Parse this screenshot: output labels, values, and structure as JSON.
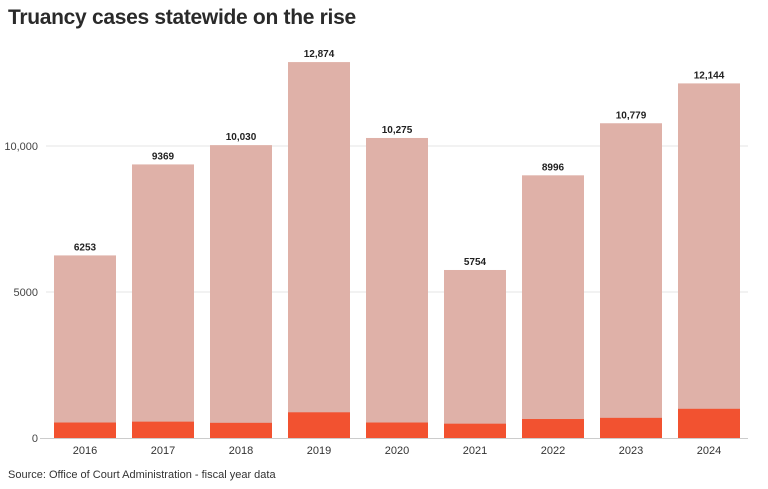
{
  "title": "Truancy cases statewide on the rise",
  "source": "Source: Office of Court Administration - fiscal year data",
  "colors": {
    "total": "#dfb1a8",
    "highlight": "#f25230",
    "grid": "#e6e6e6"
  },
  "chart_data": {
    "type": "bar",
    "categories": [
      "2016",
      "2017",
      "2018",
      "2019",
      "2020",
      "2021",
      "2022",
      "2023",
      "2024"
    ],
    "series": [
      {
        "values": [
          6253,
          9369,
          10030,
          12874,
          10275,
          5754,
          8996,
          10779,
          12144
        ]
      },
      {
        "values": [
          530,
          560,
          520,
          880,
          530,
          490,
          650,
          690,
          1000
        ]
      }
    ],
    "data_labels": [
      "6253",
      "9369",
      "10,030",
      "12,874",
      "10,275",
      "5754",
      "8996",
      "10,779",
      "12,144"
    ],
    "yticks": [
      0,
      5000,
      10000
    ],
    "ytick_labels": [
      "0",
      "5000",
      "10,000"
    ],
    "ylim": [
      0,
      15000
    ],
    "grid": true,
    "legend": "none",
    "title": "Truancy cases statewide on the rise",
    "xlabel": "",
    "ylabel": ""
  }
}
